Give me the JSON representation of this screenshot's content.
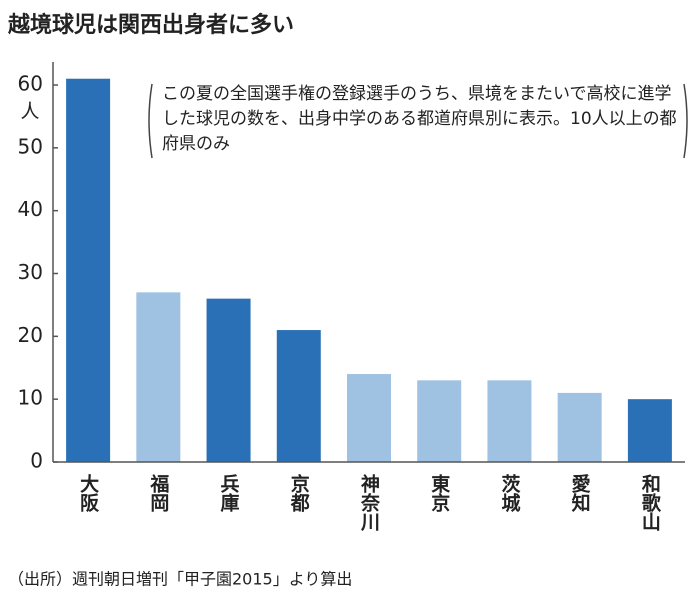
{
  "chart_data": {
    "type": "bar",
    "title": "越境球児は関西出身者に多い",
    "y_unit": "人",
    "annotation": "この夏の全国選手権の登録選手のうち、県境をまたいで高校に進学した球児の数を、出身中学のある都道府県別に表示。10人以上の都府県のみ",
    "source": "（出所）週刊朝日増刊「甲子園2015」より算出",
    "categories": [
      "大阪",
      "福岡",
      "兵庫",
      "京都",
      "神奈川",
      "東京",
      "茨城",
      "愛知",
      "和歌山"
    ],
    "values": [
      61,
      27,
      26,
      21,
      14,
      13,
      13,
      11,
      10
    ],
    "colors": [
      "#2a70b6",
      "#9fc2e2",
      "#2a70b6",
      "#2a70b6",
      "#9fc2e2",
      "#9fc2e2",
      "#9fc2e2",
      "#9fc2e2",
      "#2a70b6"
    ],
    "ylim": [
      0,
      60
    ],
    "yticks": [
      0,
      10,
      20,
      30,
      40,
      50,
      60
    ],
    "grid": false
  }
}
